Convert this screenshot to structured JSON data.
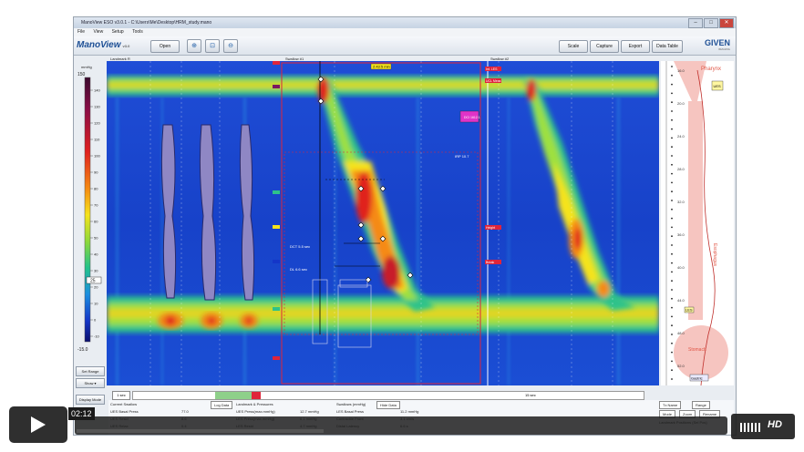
{
  "window": {
    "title": "ManoView ESO v3.0.1 - C:\\Users\\Me\\Desktop\\HRM_study.mano"
  },
  "menu": [
    "File",
    "View",
    "Setup",
    "Tools"
  ],
  "toolbar": {
    "logo": "ManoView",
    "logo_version": "v3.0",
    "open_label": "Open",
    "zoom_in_icon": "zoom-in-icon",
    "zoom_fit_icon": "zoom-fit-icon",
    "zoom_out_icon": "zoom-out-icon",
    "buttons": [
      "Scale",
      "Capture",
      "Export",
      "Data Table"
    ],
    "brand": "GIVEN",
    "brand_sub": "IMAGING"
  },
  "plot_labels": {
    "left": "Landmark R",
    "middle": "Swallow #1",
    "right": "Swallow #2"
  },
  "scale": {
    "unit": "mmHg",
    "top_value": "150",
    "ticks": [
      "140",
      "130",
      "120",
      "110",
      "100",
      "90",
      "80",
      "70",
      "60",
      "50",
      "40",
      "30",
      "20",
      "10",
      "0",
      "-10"
    ],
    "bottom_value": "-15.0",
    "current": "25"
  },
  "side_buttons": {
    "set_range": "Set Range",
    "show": "Show ▾",
    "display_mode": "Display Mode"
  },
  "markers": {
    "time": "2:43:5 min",
    "irp": "IRP 10.7",
    "dci": "DCI 1612.1",
    "landmark": "Int. LES",
    "ucl": "UCL Meas",
    "dct": "DCT 5.5 sec",
    "dl": "DL 6.6 sec",
    "height1": "Height",
    "height2": "Break"
  },
  "right_panel": {
    "pharynx": "Pharynx",
    "esophagus": "Esophagus",
    "stomach": "Stomach",
    "ues": "UES",
    "les": "LES",
    "gastric": "Gastric",
    "depths": [
      "16.0",
      "20.0",
      "24.0",
      "28.0",
      "32.0",
      "36.0",
      "40.0",
      "44.0",
      "48.0",
      "52.0"
    ]
  },
  "timeline": {
    "page": "1 sec",
    "label": "15 sec"
  },
  "table": {
    "current_swallow": "Current Swallow",
    "log_data": "Log Data",
    "landmark_pressures": "Landmark & Pressures",
    "swallow_analysis": "Swallows (mmHg)",
    "hide_data": "Hide Data",
    "rows": [
      {
        "k": "UES Basal Press",
        "v": "77.0",
        "k2": "UES Press(max.mmHg)",
        "v2": "12.7 mmHg",
        "k3": "LES Basal Press",
        "v3": "11.2 mmHg"
      },
      {
        "k": "UES Resid",
        "v": "8.6",
        "k2": "LES Press(max.mmHg)",
        "v2": "6.1 mmHg",
        "k3": "Contractile Front",
        "v3": "3.1 cm/s"
      },
      {
        "k": "UES Relax",
        "v": "0.4",
        "k2": "LES Resid",
        "v2": "4.7 mmHg",
        "k3": "Distal Latency",
        "v3": "6.6 s"
      }
    ],
    "right_buttons": [
      "Tx Name",
      "Range",
      "Mode",
      "Zoom",
      "Rename"
    ],
    "landmark_positions": "Landmark Positions (Sel Pos)"
  },
  "video": {
    "time": "02:12",
    "hd": "HD",
    "progress_fraction": 0.38
  }
}
